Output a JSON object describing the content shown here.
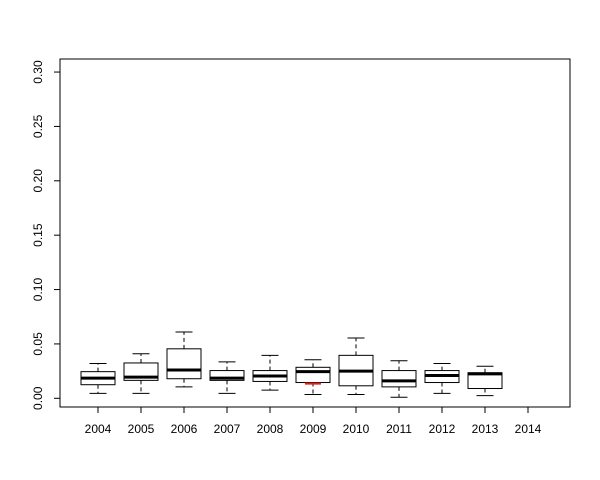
{
  "chart_data": {
    "type": "boxplot",
    "categories": [
      "2004",
      "2005",
      "2006",
      "2007",
      "2008",
      "2009",
      "2010",
      "2011",
      "2012",
      "2013",
      "2014"
    ],
    "boxes": [
      {
        "category": "2004",
        "whisker_low": 0.0045,
        "q1": 0.0125,
        "median": 0.0185,
        "q3": 0.0245,
        "whisker_high": 0.032
      },
      {
        "category": "2005",
        "whisker_low": 0.0045,
        "q1": 0.0165,
        "median": 0.0195,
        "q3": 0.0325,
        "whisker_high": 0.041
      },
      {
        "category": "2006",
        "whisker_low": 0.0105,
        "q1": 0.018,
        "median": 0.026,
        "q3": 0.0455,
        "whisker_high": 0.061
      },
      {
        "category": "2007",
        "whisker_low": 0.0045,
        "q1": 0.0165,
        "median": 0.0185,
        "q3": 0.0255,
        "whisker_high": 0.0335
      },
      {
        "category": "2008",
        "whisker_low": 0.0075,
        "q1": 0.0155,
        "median": 0.0205,
        "q3": 0.0255,
        "whisker_high": 0.0395
      },
      {
        "category": "2009",
        "whisker_low": 0.0035,
        "q1": 0.0145,
        "median": 0.0245,
        "q3": 0.0285,
        "whisker_high": 0.0355
      },
      {
        "category": "2010",
        "whisker_low": 0.0035,
        "q1": 0.0115,
        "median": 0.025,
        "q3": 0.0395,
        "whisker_high": 0.0555
      },
      {
        "category": "2011",
        "whisker_low": 0.001,
        "q1": 0.0105,
        "median": 0.016,
        "q3": 0.0255,
        "whisker_high": 0.0345
      },
      {
        "category": "2012",
        "whisker_low": 0.0045,
        "q1": 0.0145,
        "median": 0.021,
        "q3": 0.0255,
        "whisker_high": 0.032
      },
      {
        "category": "2013",
        "whisker_low": 0.0025,
        "q1": 0.009,
        "median": 0.0225,
        "q3": 0.0235,
        "whisker_high": 0.0295
      }
    ],
    "highlight": {
      "category": "2009",
      "value": 0.0135,
      "color": "#e0201b"
    },
    "yticks": [
      "0.00",
      "0.05",
      "0.10",
      "0.15",
      "0.20",
      "0.25",
      "0.30"
    ],
    "ylim": [
      -0.008,
      0.312
    ],
    "title": "",
    "xlabel": "",
    "ylabel": "",
    "grid": false
  }
}
